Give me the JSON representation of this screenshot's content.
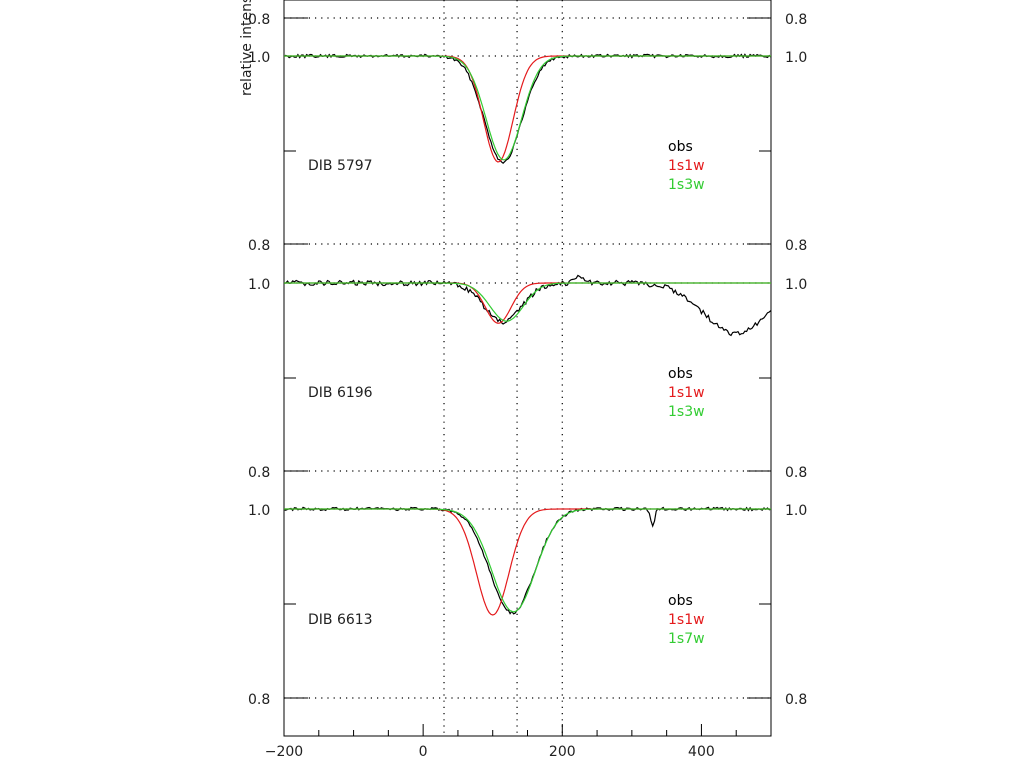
{
  "chart_data": {
    "type": "line",
    "ylabel": "relative intensity",
    "x_ticks": [
      "-200",
      "0",
      "200",
      "400"
    ],
    "xlim": [
      -200,
      500
    ],
    "vertical_guides_x": [
      30,
      135,
      200
    ],
    "legend_placement": "right",
    "panels": [
      {
        "label": "DIB 5797",
        "tick_labels": [
          "0.8",
          "1.0"
        ],
        "series": [
          {
            "name": "obs",
            "color": "#000000",
            "depth": 1.0,
            "center": 115,
            "width": 38,
            "noise": 1.0,
            "extra": []
          },
          {
            "name": "1s1w",
            "color": "#e41a1c",
            "depth": 1.0,
            "center": 108,
            "width": 30,
            "noise": 0,
            "extra": []
          },
          {
            "name": "1s3w",
            "color": "#33cc33",
            "depth": 0.98,
            "center": 116,
            "width": 36,
            "noise": 0,
            "extra": []
          }
        ]
      },
      {
        "label": "DIB 6196",
        "tick_labels": [
          "0.8",
          "1.0"
        ],
        "series": [
          {
            "name": "obs",
            "color": "#000000",
            "depth": 0.37,
            "center": 115,
            "width": 38,
            "noise": 1.6,
            "extra": [
              {
                "center": 450,
                "width": 65,
                "depth": 0.48
              },
              {
                "center": 225,
                "width": 10,
                "depth": -0.07
              }
            ]
          },
          {
            "name": "1s1w",
            "color": "#e41a1c",
            "depth": 0.38,
            "center": 108,
            "width": 26,
            "noise": 0,
            "extra": []
          },
          {
            "name": "1s3w",
            "color": "#33cc33",
            "depth": 0.36,
            "center": 120,
            "width": 34,
            "noise": 0,
            "extra": []
          }
        ]
      },
      {
        "label": "DIB 6613",
        "tick_labels": [
          "0.8",
          "1.0"
        ],
        "series": [
          {
            "name": "obs",
            "color": "#000000",
            "depth": 0.98,
            "center": 128,
            "width": 45,
            "noise": 1.0,
            "extra": [
              {
                "center": 330,
                "width": 4,
                "depth": 0.15
              }
            ]
          },
          {
            "name": "1s1w",
            "color": "#e41a1c",
            "depth": 1.0,
            "center": 100,
            "width": 33,
            "noise": 0,
            "extra": []
          },
          {
            "name": "1s7w",
            "color": "#33cc33",
            "depth": 0.97,
            "center": 130,
            "width": 44,
            "noise": 0,
            "extra": []
          }
        ]
      }
    ]
  }
}
